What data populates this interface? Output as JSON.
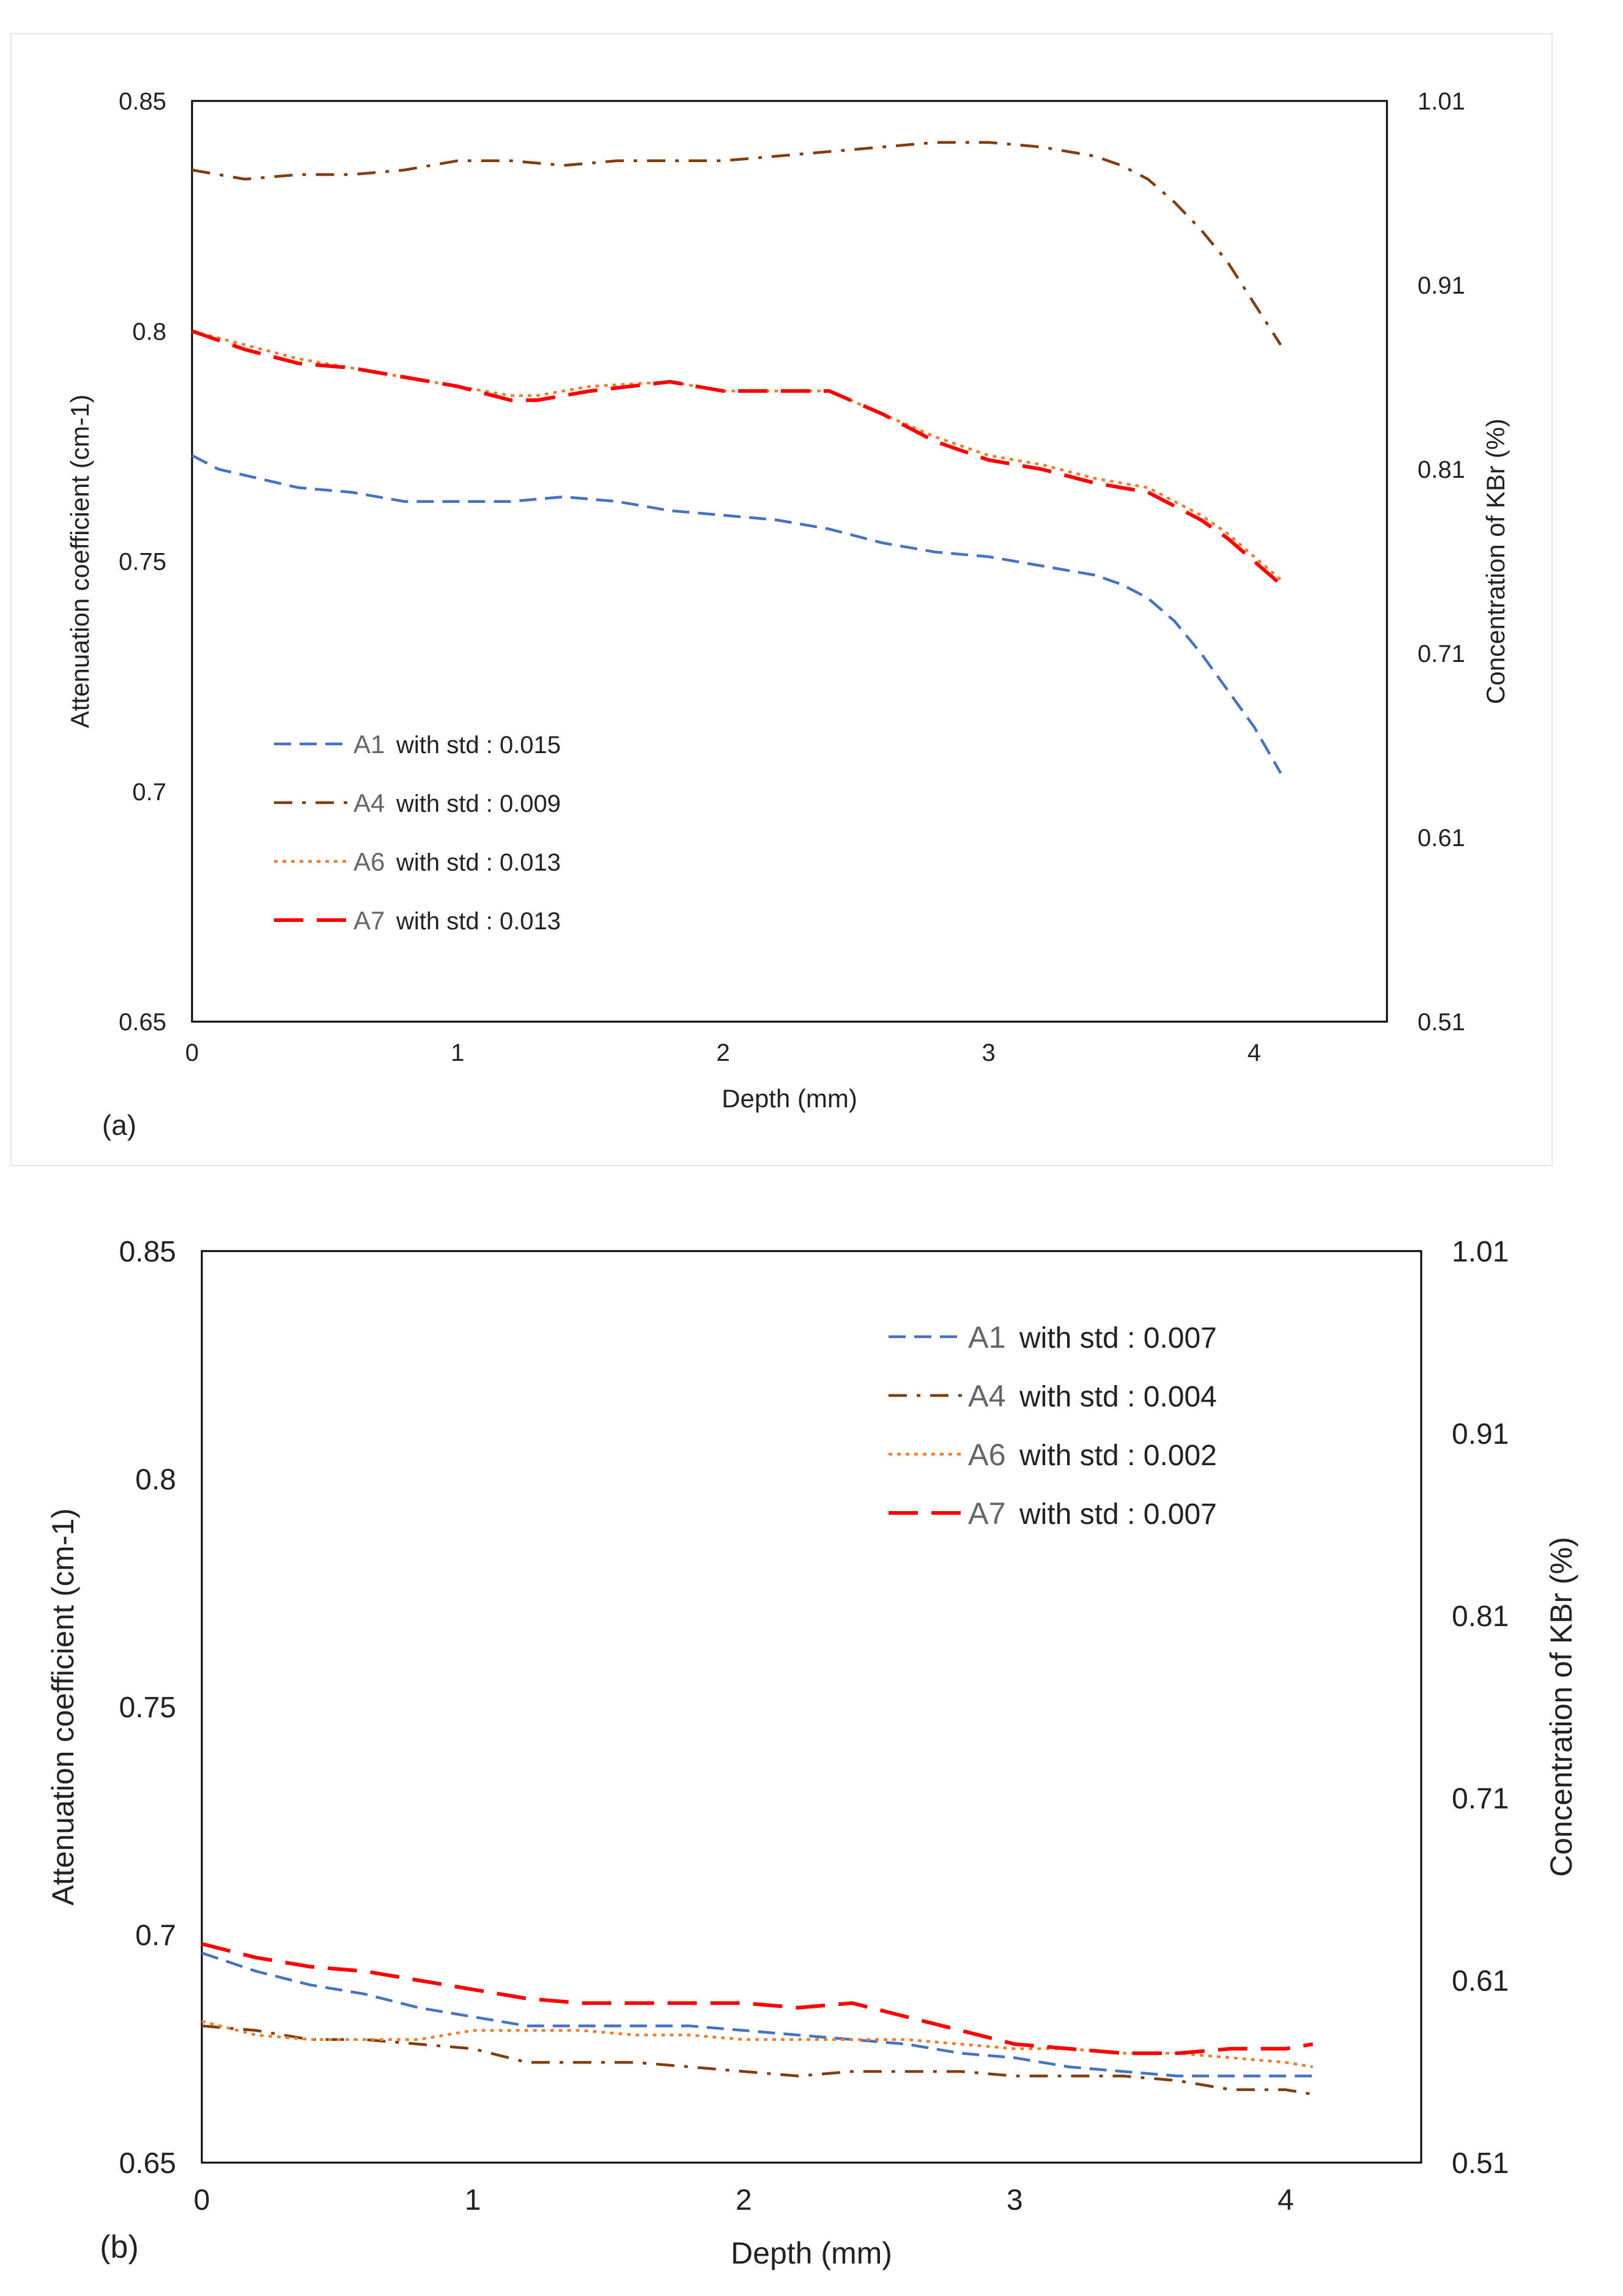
{
  "chart_data": [
    {
      "type": "line",
      "panel_label": "(a)",
      "xlabel": "Depth (mm)",
      "ylabel": "Attenuation coefficient (cm-1)",
      "y2label": "Concentration of  KBr (%)",
      "xlim": [
        0,
        4.5
      ],
      "ylim": [
        0.65,
        0.85
      ],
      "y2lim": [
        0.51,
        1.01
      ],
      "x_ticks": [
        "0",
        "1",
        "2",
        "3",
        "4"
      ],
      "y_ticks": [
        "0.65",
        "0.7",
        "0.75",
        "0.8",
        "0.85"
      ],
      "y2_ticks": [
        "0.51",
        "0.61",
        "0.71",
        "0.81",
        "0.91",
        "1.01"
      ],
      "legend_position": "bottom-left",
      "series": [
        {
          "name": "A1",
          "legend_text": "with std : 0.015",
          "color": "#4472C4",
          "style": "dash",
          "x": [
            0,
            0.1,
            0.25,
            0.4,
            0.6,
            0.8,
            1.0,
            1.2,
            1.4,
            1.6,
            1.8,
            2.0,
            2.2,
            2.4,
            2.6,
            2.8,
            3.0,
            3.2,
            3.4,
            3.5,
            3.6,
            3.7,
            3.8,
            3.9,
            4.0,
            4.1
          ],
          "y": [
            0.773,
            0.77,
            0.768,
            0.766,
            0.765,
            0.763,
            0.763,
            0.763,
            0.764,
            0.763,
            0.761,
            0.76,
            0.759,
            0.757,
            0.754,
            0.752,
            0.751,
            0.749,
            0.747,
            0.745,
            0.742,
            0.737,
            0.73,
            0.722,
            0.714,
            0.704
          ]
        },
        {
          "name": "A4",
          "legend_text": "with std : 0.009",
          "color": "#843C0C",
          "style": "dashdot",
          "x": [
            0,
            0.2,
            0.4,
            0.6,
            0.8,
            1.0,
            1.2,
            1.4,
            1.6,
            1.8,
            2.0,
            2.2,
            2.4,
            2.6,
            2.8,
            3.0,
            3.2,
            3.4,
            3.5,
            3.6,
            3.7,
            3.8,
            3.9,
            4.0,
            4.1
          ],
          "y": [
            0.835,
            0.833,
            0.834,
            0.834,
            0.835,
            0.837,
            0.837,
            0.836,
            0.837,
            0.837,
            0.837,
            0.838,
            0.839,
            0.84,
            0.841,
            0.841,
            0.84,
            0.838,
            0.836,
            0.833,
            0.828,
            0.822,
            0.815,
            0.806,
            0.797
          ]
        },
        {
          "name": "A6",
          "legend_text": "with std : 0.013",
          "color": "#ED7D31",
          "style": "dot",
          "x": [
            0,
            0.2,
            0.4,
            0.6,
            0.8,
            1.0,
            1.2,
            1.3,
            1.5,
            1.8,
            2.0,
            2.2,
            2.4,
            2.6,
            2.8,
            3.0,
            3.2,
            3.4,
            3.6,
            3.8,
            3.9,
            4.0,
            4.1
          ],
          "y": [
            0.8,
            0.797,
            0.794,
            0.792,
            0.79,
            0.788,
            0.786,
            0.786,
            0.788,
            0.789,
            0.787,
            0.787,
            0.787,
            0.782,
            0.777,
            0.773,
            0.771,
            0.768,
            0.766,
            0.76,
            0.756,
            0.751,
            0.746
          ]
        },
        {
          "name": "A7",
          "legend_text": "with std : 0.013",
          "color": "#FF0000",
          "style": "longdash",
          "x": [
            0,
            0.2,
            0.4,
            0.6,
            0.8,
            1.0,
            1.2,
            1.3,
            1.5,
            1.8,
            2.0,
            2.2,
            2.4,
            2.6,
            2.8,
            3.0,
            3.2,
            3.4,
            3.6,
            3.8,
            3.9,
            4.0,
            4.1
          ],
          "y": [
            0.8,
            0.796,
            0.793,
            0.792,
            0.79,
            0.788,
            0.785,
            0.785,
            0.787,
            0.789,
            0.787,
            0.787,
            0.787,
            0.782,
            0.776,
            0.772,
            0.77,
            0.767,
            0.765,
            0.759,
            0.755,
            0.75,
            0.745
          ]
        }
      ]
    },
    {
      "type": "line",
      "panel_label": "(b)",
      "xlabel": "Depth (mm)",
      "ylabel": "Attenuation coefficient (cm-1)",
      "y2label": "Concentration of  KBr (%)",
      "xlim": [
        0,
        4.5
      ],
      "ylim": [
        0.65,
        0.85
      ],
      "y2lim": [
        0.51,
        1.01
      ],
      "x_ticks": [
        "0",
        "1",
        "2",
        "3",
        "4"
      ],
      "y_ticks": [
        "0.65",
        "0.7",
        "0.75",
        "0.8",
        "0.85"
      ],
      "y2_ticks": [
        "0.51",
        "0.61",
        "0.71",
        "0.81",
        "0.91",
        "1.01"
      ],
      "legend_position": "top-right",
      "series": [
        {
          "name": "A1",
          "legend_text": "with std : 0.007",
          "color": "#4472C4",
          "style": "dash",
          "x": [
            0,
            0.2,
            0.4,
            0.6,
            0.8,
            1.0,
            1.2,
            1.4,
            1.6,
            1.8,
            2.0,
            2.2,
            2.4,
            2.6,
            2.8,
            3.0,
            3.2,
            3.4,
            3.6,
            3.8,
            4.0,
            4.1
          ],
          "y": [
            0.696,
            0.692,
            0.689,
            0.687,
            0.684,
            0.682,
            0.68,
            0.68,
            0.68,
            0.68,
            0.679,
            0.678,
            0.677,
            0.676,
            0.674,
            0.673,
            0.671,
            0.67,
            0.669,
            0.669,
            0.669,
            0.669
          ]
        },
        {
          "name": "A4",
          "legend_text": "with std : 0.004",
          "color": "#843C0C",
          "style": "dashdot",
          "x": [
            0,
            0.2,
            0.4,
            0.6,
            0.8,
            1.0,
            1.2,
            1.4,
            1.6,
            1.8,
            2.0,
            2.2,
            2.4,
            2.6,
            2.8,
            3.0,
            3.2,
            3.4,
            3.6,
            3.8,
            4.0,
            4.1
          ],
          "y": [
            0.68,
            0.679,
            0.677,
            0.677,
            0.676,
            0.675,
            0.672,
            0.672,
            0.672,
            0.671,
            0.67,
            0.669,
            0.67,
            0.67,
            0.67,
            0.669,
            0.669,
            0.669,
            0.668,
            0.666,
            0.666,
            0.665
          ]
        },
        {
          "name": "A6",
          "legend_text": "with std : 0.002",
          "color": "#ED7D31",
          "style": "dot",
          "x": [
            0,
            0.2,
            0.4,
            0.6,
            0.8,
            1.0,
            1.2,
            1.4,
            1.6,
            1.8,
            2.0,
            2.2,
            2.4,
            2.6,
            2.8,
            3.0,
            3.2,
            3.4,
            3.6,
            3.8,
            4.0,
            4.1
          ],
          "y": [
            0.681,
            0.678,
            0.677,
            0.677,
            0.677,
            0.679,
            0.679,
            0.679,
            0.678,
            0.678,
            0.677,
            0.677,
            0.677,
            0.677,
            0.676,
            0.675,
            0.675,
            0.674,
            0.674,
            0.673,
            0.672,
            0.671
          ]
        },
        {
          "name": "A7",
          "legend_text": "with std : 0.007",
          "color": "#FF0000",
          "style": "longdash",
          "x": [
            0,
            0.2,
            0.4,
            0.6,
            0.8,
            1.0,
            1.2,
            1.4,
            1.6,
            1.8,
            2.0,
            2.2,
            2.4,
            2.6,
            2.8,
            3.0,
            3.2,
            3.4,
            3.6,
            3.8,
            4.0,
            4.1
          ],
          "y": [
            0.698,
            0.695,
            0.693,
            0.692,
            0.69,
            0.688,
            0.686,
            0.685,
            0.685,
            0.685,
            0.685,
            0.684,
            0.685,
            0.682,
            0.679,
            0.676,
            0.675,
            0.674,
            0.674,
            0.675,
            0.675,
            0.676
          ]
        }
      ]
    }
  ]
}
